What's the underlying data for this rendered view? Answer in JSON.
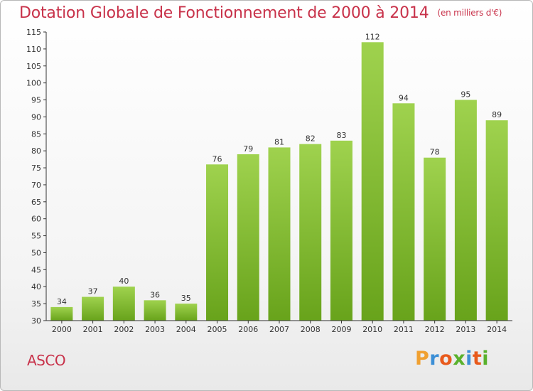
{
  "page": {
    "title": "Dotation Globale de Fonctionnement de 2000 à 2014",
    "unit": "(en milliers d'€)",
    "commune": "ASCO",
    "brand": "Proxiti"
  },
  "colors": {
    "title": "#c8324a",
    "bar_light": "#9fd24e",
    "bar_dark": "#68a31b",
    "axis": "#333333",
    "grid": "#cccccc",
    "brand_letters": [
      "#f0a030",
      "#3c8fd6",
      "#e85a1c",
      "#59b12c",
      "#3c8fd6",
      "#e85a1c",
      "#59b12c"
    ]
  },
  "chart_data": {
    "type": "bar",
    "title": "Dotation Globale de Fonctionnement de 2000 à 2014",
    "subtitle": "(en milliers d'€)",
    "xlabel": "",
    "ylabel": "",
    "categories": [
      "2000",
      "2001",
      "2002",
      "2003",
      "2004",
      "2005",
      "2006",
      "2007",
      "2008",
      "2009",
      "2010",
      "2011",
      "2012",
      "2013",
      "2014"
    ],
    "values": [
      34,
      37,
      40,
      36,
      35,
      76,
      79,
      81,
      82,
      83,
      112,
      94,
      78,
      95,
      89
    ],
    "ylim": [
      30,
      115
    ],
    "yticks": [
      30,
      35,
      40,
      45,
      50,
      55,
      60,
      65,
      70,
      75,
      80,
      85,
      90,
      95,
      100,
      105,
      110,
      115
    ],
    "grid": false,
    "data_labels": true
  }
}
